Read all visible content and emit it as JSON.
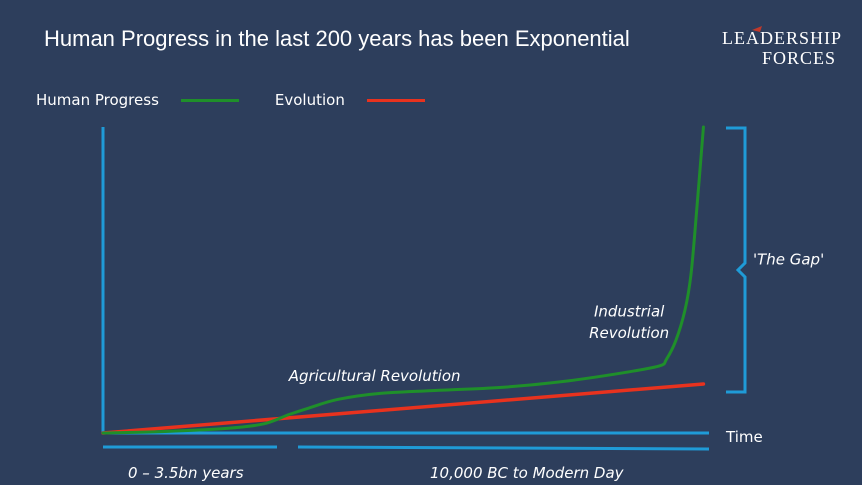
{
  "slide": {
    "title": "Human Progress in the last 200 years has been Exponential"
  },
  "logo": {
    "line1": "LEADERSHIP",
    "line2": "FORCES"
  },
  "legend": [
    {
      "label": "Human Progress",
      "color": "#1f8f2a"
    },
    {
      "label": "Evolution",
      "color": "#e8321e"
    }
  ],
  "colors": {
    "background": "#2d3e5c",
    "axis": "#1f9bd7",
    "progress": "#1f8f2a",
    "evolution": "#e8321e",
    "logo_accent": "#c0392b"
  },
  "chart_data": {
    "type": "line",
    "title": "Human Progress in the last 200 years has been Exponential",
    "xlabel": "Time",
    "ylabel": "",
    "xlim": [
      0,
      1
    ],
    "ylim": [
      0,
      1
    ],
    "grid": false,
    "legend_position": "top-left",
    "series": [
      {
        "name": "Human Progress",
        "x": [
          0.0,
          0.1,
          0.2,
          0.26,
          0.3,
          0.33,
          0.38,
          0.45,
          0.55,
          0.65,
          0.75,
          0.85,
          0.9,
          0.91,
          0.925,
          0.94,
          0.95,
          0.96,
          0.97
        ],
        "y": [
          0.0,
          0.005,
          0.015,
          0.03,
          0.06,
          0.08,
          0.11,
          0.13,
          0.14,
          0.15,
          0.17,
          0.2,
          0.22,
          0.24,
          0.3,
          0.4,
          0.52,
          0.75,
          1.0
        ]
      },
      {
        "name": "Evolution",
        "x": [
          0.0,
          0.97
        ],
        "y": [
          0.0,
          0.16
        ]
      }
    ],
    "annotations": [
      {
        "text": "Agricultural Revolution",
        "x": 0.3,
        "y": 0.17
      },
      {
        "text": "Industrial",
        "x": 0.85,
        "y": 0.38
      },
      {
        "text": "Revolution",
        "x": 0.85,
        "y": 0.31
      },
      {
        "text": "'The Gap'",
        "x": 1.05,
        "y": 0.55
      }
    ],
    "timeline": [
      {
        "label": "0 – 3.5bn years"
      },
      {
        "label": "10,000 BC to Modern Day"
      }
    ]
  }
}
